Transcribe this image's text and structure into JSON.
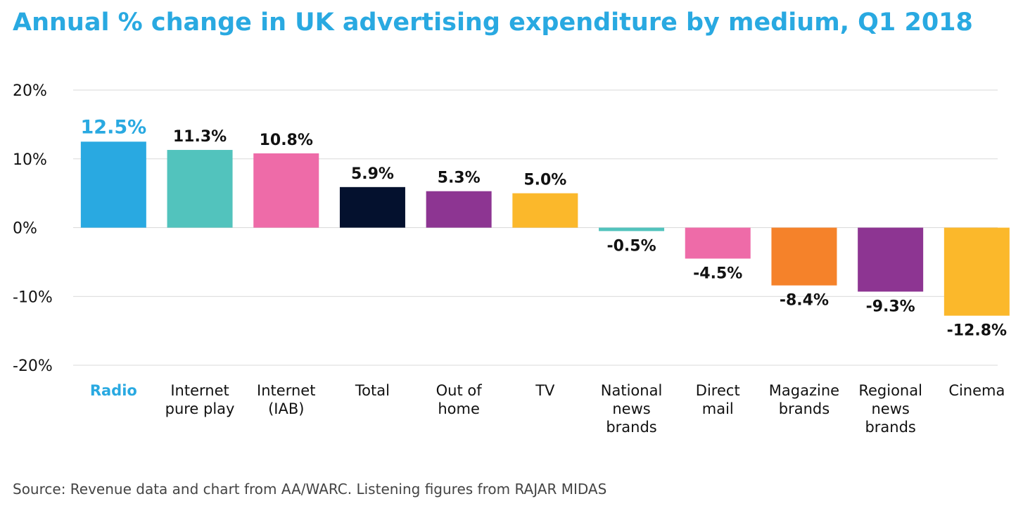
{
  "chart_data": {
    "type": "bar",
    "title": "Annual % change in UK advertising expenditure by medium, Q1 2018",
    "xlabel": "",
    "ylabel": "",
    "ylim": [
      -20,
      20
    ],
    "yticks": [
      20,
      10,
      0,
      -10,
      -20
    ],
    "ytick_labels": [
      "20%",
      "10%",
      "0%",
      "-10%",
      "-20%"
    ],
    "grid": true,
    "categories": [
      [
        "Radio"
      ],
      [
        "Internet",
        "pure play"
      ],
      [
        "Internet",
        "(IAB)"
      ],
      [
        "Total"
      ],
      [
        "Out of",
        "home"
      ],
      [
        "TV"
      ],
      [
        "National",
        "news",
        "brands"
      ],
      [
        "Direct",
        "mail"
      ],
      [
        "Magazine",
        "brands"
      ],
      [
        "Regional",
        "news",
        "brands"
      ],
      [
        "Cinema"
      ]
    ],
    "values": [
      12.5,
      11.3,
      10.8,
      5.9,
      5.3,
      5.0,
      -0.5,
      -4.5,
      -8.4,
      -9.3,
      -12.8
    ],
    "data_labels": [
      "12.5%",
      "11.3%",
      "10.8%",
      "5.9%",
      "5.3%",
      "5.0%",
      "-0.5%",
      "-4.5%",
      "-8.4%",
      "-9.3%",
      "-12.8%"
    ],
    "colors": [
      "#29a9e1",
      "#52c3bd",
      "#ee6ba8",
      "#04112e",
      "#8d3592",
      "#fbb82b",
      "#52c3bd",
      "#ee6ba8",
      "#f5822a",
      "#8d3592",
      "#fbb82b"
    ],
    "highlight_index": 0,
    "highlight_color": "#29a9e1",
    "text_color": "#111111",
    "grid_color": "#d9d9d9"
  },
  "source": "Source: Revenue data and chart from AA/WARC. Listening figures from RAJAR MIDAS"
}
